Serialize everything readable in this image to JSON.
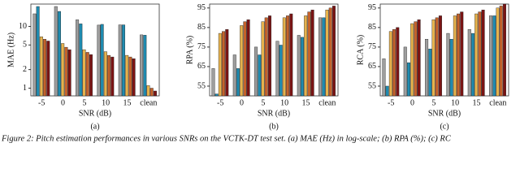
{
  "chart_data": [
    {
      "type": "bar",
      "label": "(a)",
      "x_label": "SNR (dB)",
      "y_label": "MAE (Hz)",
      "log": true,
      "categories": [
        "-5",
        "0",
        "5",
        "10",
        "15",
        "clean"
      ],
      "ylim": [
        0.75,
        23
      ],
      "yticks": [
        1,
        2,
        5,
        10
      ],
      "series": [
        {
          "color": "#9e9e9e",
          "values": [
            16,
            21,
            12.8,
            10.5,
            10.6,
            7.3
          ]
        },
        {
          "color": "#1f8bb0",
          "values": [
            21,
            17.5,
            11,
            10.8,
            10.6,
            7.2
          ]
        },
        {
          "color": "#e6b24c",
          "values": [
            6.8,
            5.3,
            4.2,
            3.9,
            3.4,
            1.1
          ]
        },
        {
          "color": "#c4622b",
          "values": [
            6.2,
            4.6,
            3.8,
            3.4,
            3.2,
            1.0
          ]
        },
        {
          "color": "#7b1414",
          "values": [
            5.8,
            4.2,
            3.5,
            3.2,
            3.0,
            0.9
          ]
        }
      ]
    },
    {
      "type": "bar",
      "label": "(b)",
      "x_label": "SNR (dB)",
      "y_label": "RPA (%)",
      "log": false,
      "categories": [
        "-5",
        "0",
        "5",
        "10",
        "15",
        "clean"
      ],
      "ylim": [
        50,
        97
      ],
      "yticks": [
        55,
        65,
        75,
        85,
        95
      ],
      "series": [
        {
          "color": "#9e9e9e",
          "values": [
            64,
            71,
            75,
            78,
            81,
            90
          ]
        },
        {
          "color": "#1f8bb0",
          "values": [
            51,
            64,
            71,
            76,
            80,
            90
          ]
        },
        {
          "color": "#e6b24c",
          "values": [
            82,
            86,
            88,
            90,
            91,
            94
          ]
        },
        {
          "color": "#c4622b",
          "values": [
            83,
            88,
            90,
            91,
            93,
            95
          ]
        },
        {
          "color": "#7b1414",
          "values": [
            84,
            89,
            91,
            92,
            94,
            96
          ]
        }
      ]
    },
    {
      "type": "bar",
      "label": "(c)",
      "x_label": "SNR (dB)",
      "y_label": "RCA (%)",
      "log": false,
      "categories": [
        "-5",
        "0",
        "5",
        "10",
        "15",
        "clean"
      ],
      "ylim": [
        50,
        97
      ],
      "yticks": [
        55,
        65,
        75,
        85,
        95
      ],
      "series": [
        {
          "color": "#9e9e9e",
          "values": [
            69,
            75,
            79,
            82,
            84,
            91
          ]
        },
        {
          "color": "#1f8bb0",
          "values": [
            55,
            67,
            74,
            79,
            82,
            91
          ]
        },
        {
          "color": "#e6b24c",
          "values": [
            83,
            87,
            89,
            91,
            92,
            95
          ]
        },
        {
          "color": "#c4622b",
          "values": [
            84,
            88,
            90,
            92,
            93,
            96
          ]
        },
        {
          "color": "#7b1414",
          "values": [
            85,
            89,
            91,
            93,
            94,
            97
          ]
        }
      ]
    }
  ],
  "caption": "Figure 2: Pitch estimation performances in various SNRs on the VCTK-DT test set. (a) MAE (Hz) in log-scale; (b) RPA (%); (c) RC"
}
